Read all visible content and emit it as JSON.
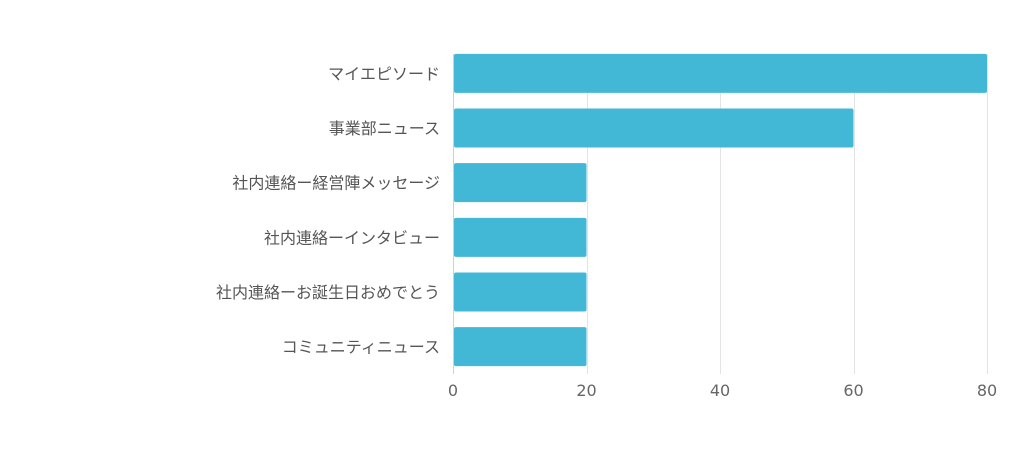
{
  "chart_data": {
    "type": "bar",
    "orientation": "horizontal",
    "categories": [
      "マイエピソード",
      "事業部ニュース",
      "社内連絡ー経営陣メッセージ",
      "社内連絡ーインタビュー",
      "社内連絡ーお誕生日おめでとう",
      "コミュニティニュース"
    ],
    "values": [
      80,
      60,
      20,
      20,
      20,
      20
    ],
    "xlim": [
      0,
      80
    ],
    "x_ticks": [
      "0",
      "20",
      "40",
      "60",
      "80"
    ],
    "grid": true,
    "bar_color": "#42b8d6"
  }
}
